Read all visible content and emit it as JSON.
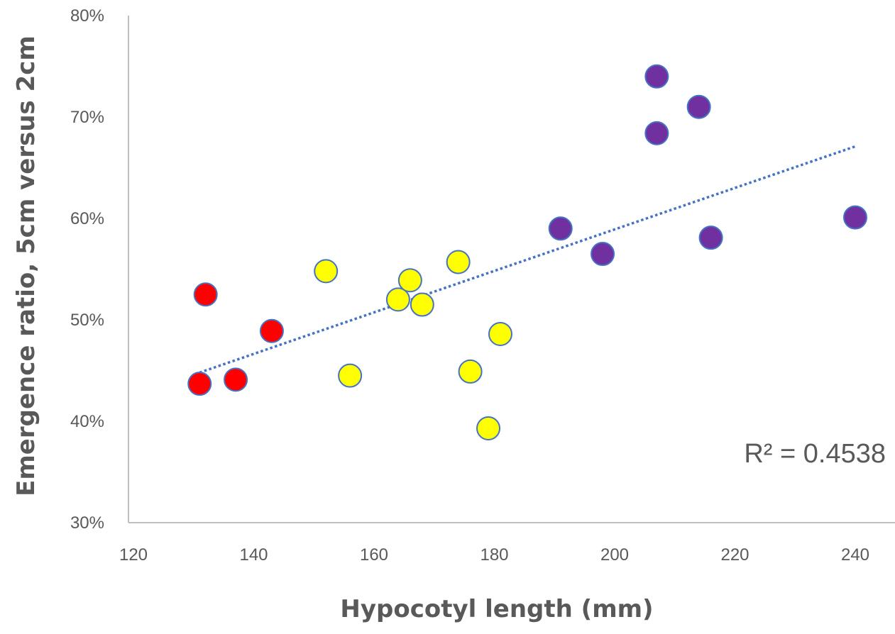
{
  "chart_data": {
    "type": "scatter",
    "title": "",
    "xlabel": "Hypocotyl length (mm)",
    "ylabel": "Emergence ratio, 5cm versus 2cm",
    "xlim": [
      120,
      250
    ],
    "ylim": [
      0.3,
      0.8
    ],
    "x_ticks": [
      120,
      140,
      160,
      180,
      200,
      220,
      240
    ],
    "x_tick_labels": [
      "120",
      "140",
      "160",
      "180",
      "200",
      "220",
      "240"
    ],
    "y_ticks": [
      0.3,
      0.4,
      0.5,
      0.6,
      0.7,
      0.8
    ],
    "y_tick_labels": [
      "30%",
      "40%",
      "50%",
      "60%",
      "70%",
      "80%"
    ],
    "grid": false,
    "legend": false,
    "annotation": "R² = 0.4538",
    "trendline": {
      "style": "dotted",
      "color": "#4472C4",
      "x": [
        131,
        240
      ],
      "y": [
        0.448,
        0.671
      ]
    },
    "series": [
      {
        "color": "#FF0000",
        "points": [
          {
            "x": 132,
            "y": 0.525
          },
          {
            "x": 131,
            "y": 0.437
          },
          {
            "x": 137,
            "y": 0.441
          },
          {
            "x": 143,
            "y": 0.489
          }
        ]
      },
      {
        "color": "#FFFF00",
        "points": [
          {
            "x": 152,
            "y": 0.548
          },
          {
            "x": 156,
            "y": 0.445
          },
          {
            "x": 164,
            "y": 0.52
          },
          {
            "x": 166,
            "y": 0.539
          },
          {
            "x": 168,
            "y": 0.515
          },
          {
            "x": 174,
            "y": 0.557
          },
          {
            "x": 176,
            "y": 0.449
          },
          {
            "x": 179,
            "y": 0.393
          },
          {
            "x": 181,
            "y": 0.486
          }
        ]
      },
      {
        "color": "#7030A0",
        "points": [
          {
            "x": 191,
            "y": 0.59
          },
          {
            "x": 198,
            "y": 0.565
          },
          {
            "x": 207,
            "y": 0.74
          },
          {
            "x": 207,
            "y": 0.684
          },
          {
            "x": 214,
            "y": 0.71
          },
          {
            "x": 216,
            "y": 0.581
          },
          {
            "x": 240,
            "y": 0.601
          }
        ]
      }
    ],
    "colors": {
      "axis": "#BFBFBF",
      "text": "#595959",
      "marker_edge": "#4472C4"
    }
  }
}
